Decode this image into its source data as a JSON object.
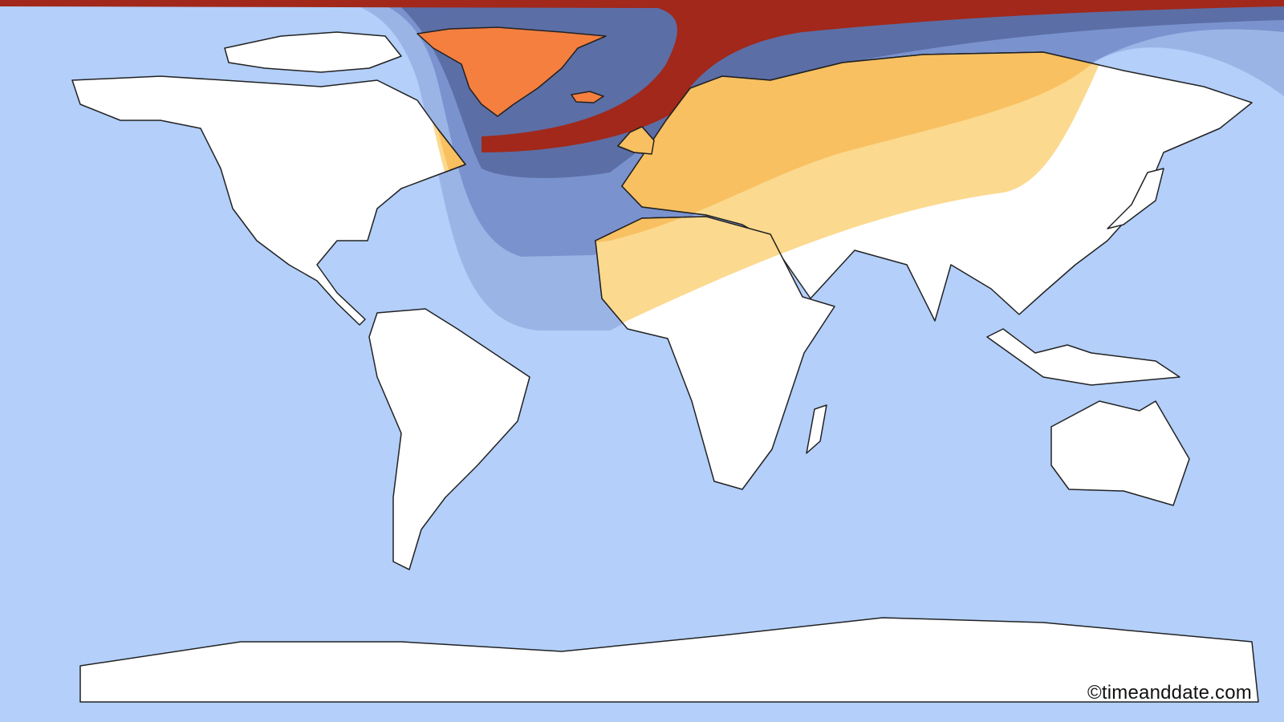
{
  "map": {
    "type": "world eclipse visibility map",
    "projection": "equirectangular",
    "colors": {
      "ocean": "#b3cffa",
      "land": "#ffffff",
      "band_outer": "#9bb4e6",
      "band_mid": "#7a93cf",
      "band_inner": "#5c6ea6",
      "band_core": "#a1281a",
      "land_partial_light": "#fbd98e",
      "land_partial": "#f8c061",
      "land_strong": "#f47f3f"
    }
  },
  "credit": "©timeanddate.com"
}
